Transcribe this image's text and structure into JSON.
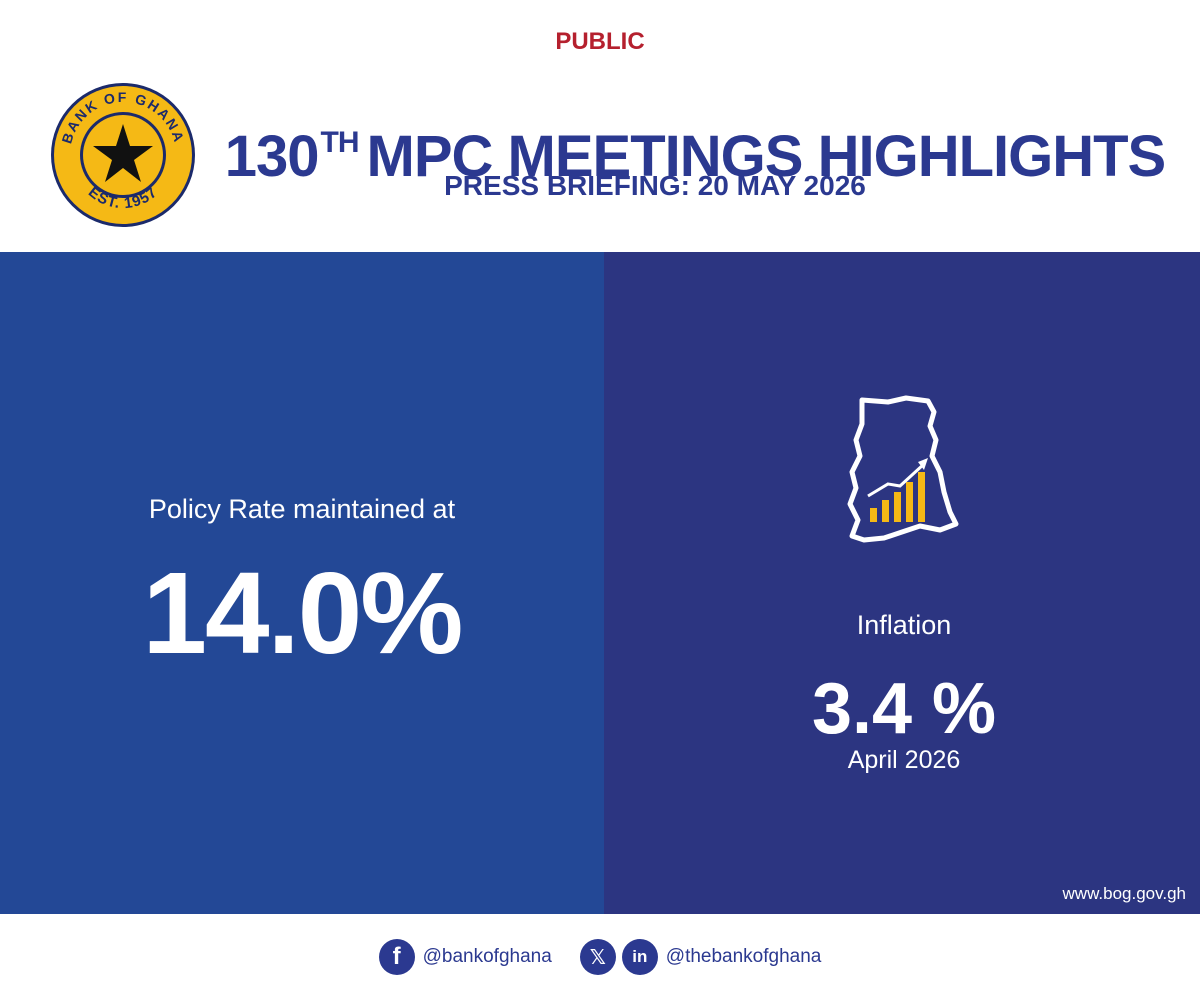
{
  "classification": "PUBLIC",
  "logo": {
    "top_text": "BANK OF GHANA",
    "bottom_text": "EST. 1957",
    "ring_color": "#f5b915",
    "star_color": "#111111"
  },
  "header": {
    "title_number": "130",
    "title_superscript": "TH",
    "title_rest": "MPC MEETINGS HIGHLIGHTS",
    "subtitle": "PRESS BRIEFING: 20 MAY 2026"
  },
  "policy_rate": {
    "label": "Policy Rate maintained at",
    "value": "14.0%"
  },
  "inflation": {
    "icon": "ghana-map-growth-chart-icon",
    "label": "Inflation",
    "value": "3.4 %",
    "period": "April 2026"
  },
  "website": "www.bog.gov.gh",
  "footer": {
    "facebook_icon": "facebook-icon",
    "facebook_handle": "@bankofghana",
    "x_icon": "x-icon",
    "linkedin_icon": "linkedin-icon",
    "other_handle": "@thebankofghana"
  },
  "colors": {
    "brand_blue": "#2b3990",
    "left_panel": "#234896",
    "right_panel": "#2c3581",
    "accent_red": "#b5202e",
    "gold": "#f5b915"
  }
}
